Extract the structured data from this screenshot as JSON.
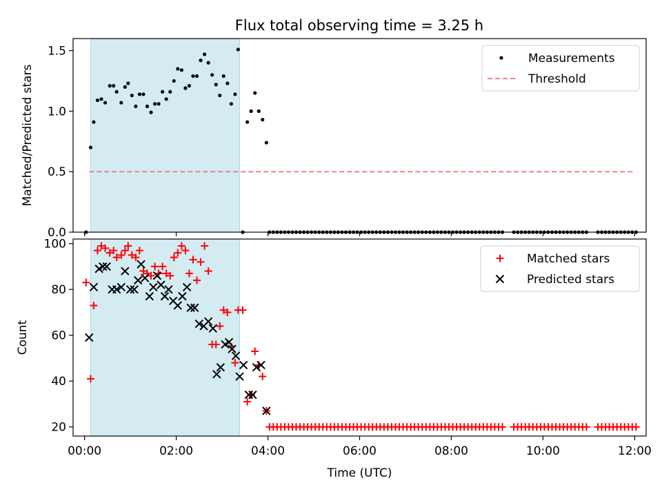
{
  "figure": {
    "title": "Flux total observing time = 3.25 h"
  },
  "chart_data": [
    {
      "type": "scatter",
      "ylabel": "Matched/Predicted stars",
      "ylim": [
        0,
        1.6
      ],
      "xlim": [
        -0.25,
        12.25
      ],
      "yticks": [
        0.0,
        0.5,
        1.0,
        1.5
      ],
      "ytick_labels": [
        "0.0",
        "0.5",
        "1.0",
        "1.5"
      ],
      "shaded_span": {
        "x0": 0.133,
        "x1": 3.383,
        "color": "#add8e6"
      },
      "legend_position": "top-right",
      "series": [
        {
          "name": "Measurements",
          "marker": "dot",
          "color": "#000000",
          "x": [
            0.033,
            0.133,
            0.2,
            0.283,
            0.367,
            0.45,
            0.55,
            0.633,
            0.7,
            0.8,
            0.883,
            0.95,
            1.033,
            1.117,
            1.2,
            1.283,
            1.367,
            1.45,
            1.533,
            1.617,
            1.7,
            1.783,
            1.867,
            1.95,
            2.033,
            2.117,
            2.2,
            2.283,
            2.367,
            2.45,
            2.533,
            2.617,
            2.7,
            2.783,
            2.867,
            2.95,
            3.033,
            3.117,
            3.2,
            3.283,
            3.35,
            3.45,
            3.55,
            3.633,
            3.717,
            3.8,
            3.883,
            3.967
          ],
          "y": [
            0.0,
            0.7,
            0.91,
            1.09,
            1.1,
            1.07,
            1.21,
            1.21,
            1.16,
            1.07,
            1.2,
            1.23,
            1.13,
            1.04,
            1.14,
            1.14,
            1.04,
            0.99,
            1.06,
            1.06,
            1.16,
            1.1,
            1.16,
            1.25,
            1.35,
            1.34,
            1.19,
            1.21,
            1.29,
            1.29,
            1.42,
            1.47,
            1.4,
            1.3,
            1.22,
            1.13,
            1.29,
            1.23,
            1.06,
            1.14,
            1.51,
            0.0,
            0.91,
            1.0,
            1.15,
            1.0,
            0.93,
            0.74
          ],
          "zero_run": {
            "x_start": 4.033,
            "x_end": 12.0,
            "step": 0.0833,
            "y": 0.0,
            "gaps": [
              [
                9.12,
                9.3
              ],
              [
                11.0,
                11.13
              ]
            ]
          }
        },
        {
          "name": "Threshold",
          "marker": "dashed-line",
          "color": "#f08080",
          "x": [
            0.1,
            12.0
          ],
          "y": [
            0.5,
            0.5
          ]
        }
      ]
    },
    {
      "type": "scatter",
      "xlabel": "Time (UTC)",
      "ylabel": "Count",
      "ylim": [
        16,
        102
      ],
      "xlim": [
        -0.25,
        12.25
      ],
      "yticks": [
        20,
        40,
        60,
        80,
        100
      ],
      "ytick_labels": [
        "20",
        "40",
        "60",
        "80",
        "100"
      ],
      "xticks": [
        0,
        2,
        4,
        6,
        8,
        10,
        12
      ],
      "xtick_labels": [
        "00:00",
        "02:00",
        "04:00",
        "06:00",
        "08:00",
        "10:00",
        "12:00"
      ],
      "shaded_span": {
        "x0": 0.133,
        "x1": 3.383,
        "color": "#add8e6"
      },
      "legend_position": "top-right",
      "series": [
        {
          "name": "Matched stars",
          "marker": "plus",
          "color": "#ff0000",
          "x": [
            0.033,
            0.133,
            0.2,
            0.283,
            0.367,
            0.45,
            0.55,
            0.633,
            0.7,
            0.8,
            0.883,
            0.95,
            1.033,
            1.117,
            1.2,
            1.283,
            1.367,
            1.45,
            1.533,
            1.617,
            1.7,
            1.783,
            1.867,
            1.95,
            2.033,
            2.117,
            2.2,
            2.283,
            2.367,
            2.45,
            2.533,
            2.617,
            2.7,
            2.783,
            2.867,
            2.95,
            3.033,
            3.117,
            3.2,
            3.283,
            3.35,
            3.45,
            3.55,
            3.633,
            3.717,
            3.8,
            3.883,
            3.967
          ],
          "y": [
            83,
            41,
            73,
            97,
            99,
            98,
            96,
            97,
            94,
            95,
            97,
            99,
            95,
            94,
            97,
            88,
            87,
            86,
            90,
            87,
            90,
            87,
            86,
            94,
            96,
            99,
            97,
            87,
            93,
            84,
            92,
            99,
            88,
            56,
            56,
            64,
            71,
            70,
            55,
            48,
            71,
            71,
            31,
            34,
            53,
            47,
            42,
            27
          ],
          "floor_run": {
            "x_start": 4.033,
            "x_end": 12.0,
            "step": 0.0833,
            "y": 20,
            "gaps": [
              [
                9.12,
                9.3
              ],
              [
                11.0,
                11.13
              ]
            ]
          }
        },
        {
          "name": "Predicted stars",
          "marker": "x",
          "color": "#000000",
          "x": [
            0.1,
            0.2,
            0.317,
            0.4,
            0.483,
            0.6,
            0.7,
            0.8,
            0.883,
            1.0,
            1.083,
            1.167,
            1.233,
            1.317,
            1.417,
            1.5,
            1.583,
            1.667,
            1.75,
            1.833,
            1.933,
            2.033,
            2.133,
            2.233,
            2.317,
            2.4,
            2.5,
            2.6,
            2.7,
            2.8,
            2.883,
            2.967,
            3.067,
            3.15,
            3.217,
            3.3,
            3.383,
            3.467,
            3.583,
            3.667,
            3.75,
            3.85,
            3.967
          ],
          "y": [
            59,
            81,
            89,
            90,
            90,
            80,
            80,
            81,
            88,
            80,
            80,
            84,
            91,
            85,
            77,
            81,
            86,
            82,
            77,
            80,
            75,
            73,
            77,
            81,
            72,
            72,
            65,
            64,
            66,
            63,
            43,
            46,
            56,
            57,
            54,
            51,
            42,
            47,
            34,
            34,
            46,
            47,
            27
          ]
        }
      ]
    }
  ]
}
